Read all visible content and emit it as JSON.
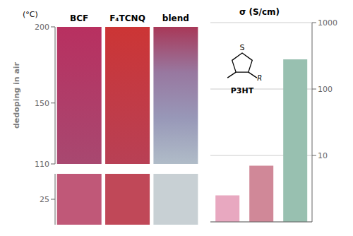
{
  "chart_data": [
    {
      "type": "strip",
      "categories": [
        "BCF",
        "F₄TCNQ",
        "blend"
      ],
      "ylabel": "dedoping in air",
      "annotations": [
        "(°C)"
      ],
      "ylim": [
        110,
        200
      ],
      "yticks": [
        110,
        150,
        200
      ],
      "colors": [
        [
          "#b83060",
          "#a84870"
        ],
        [
          "#cc3535",
          "#b84055"
        ],
        [
          "#a83858",
          "#9878a0",
          "#9898b8",
          "#b0bcc8"
        ]
      ]
    },
    {
      "type": "strip",
      "categories": [
        null,
        null,
        null
      ],
      "ylim": [
        0,
        50
      ],
      "yticks": [
        25
      ],
      "colors": [
        "#c05878",
        "#c04858",
        "#c8d0d4"
      ],
      "tick_labels": "y"
    },
    {
      "type": "bar",
      "title": "σ (S/cm)",
      "categories": [
        null,
        null,
        null
      ],
      "values": [
        2.5,
        7.0,
        280
      ],
      "colors": [
        "#e8a8c0",
        "#d08898",
        "#98c0b0"
      ],
      "log": "y",
      "ylim": [
        1,
        1000
      ],
      "yticks": [
        10,
        100,
        1000
      ],
      "grid": true,
      "tick_labels": "y",
      "annotations": [
        "S",
        "R",
        "P3HT"
      ]
    }
  ]
}
